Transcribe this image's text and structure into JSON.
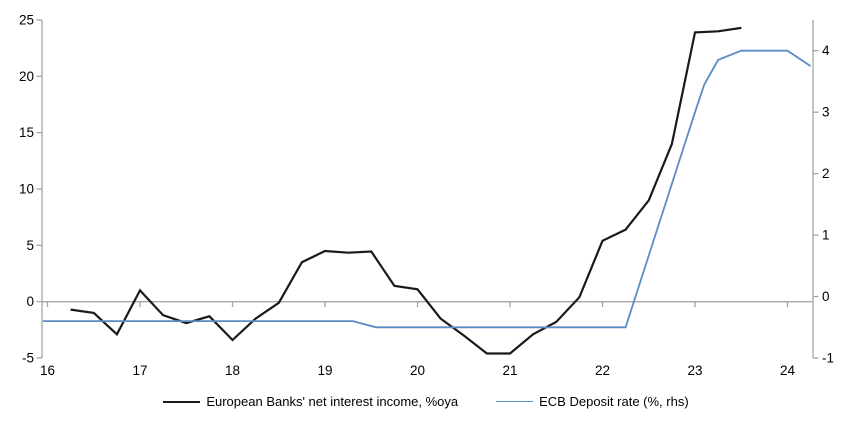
{
  "chart_data": {
    "type": "line",
    "title": "",
    "grid": "zero-line-only",
    "legend_position": "bottom-center",
    "x_axis": {
      "min": 16,
      "max": 24.3,
      "ticks": [
        16,
        17,
        18,
        19,
        20,
        21,
        22,
        23,
        24
      ],
      "tick_labels": [
        "16",
        "17",
        "18",
        "19",
        "20",
        "21",
        "22",
        "23",
        "24"
      ]
    },
    "left_axis": {
      "min": -5,
      "max": 25,
      "ticks": [
        25,
        20,
        15,
        10,
        5,
        0,
        -5
      ]
    },
    "right_axis": {
      "min": -1,
      "max": 4.5,
      "ticks": [
        4,
        3,
        2,
        1,
        0,
        -1
      ]
    },
    "colors": {
      "axis_gray": "#a6a6a6",
      "series_black": "#1a1a1a",
      "series_blue": "#5b8cc3"
    },
    "series": [
      {
        "name": "European Banks' net interest income, %oya",
        "axis": "left",
        "color": "#1a1a1a",
        "stroke_width": 2.2,
        "points": [
          [
            16.25,
            -0.7
          ],
          [
            16.5,
            -1.0
          ],
          [
            16.75,
            -2.9
          ],
          [
            17.0,
            1.0
          ],
          [
            17.25,
            -1.2
          ],
          [
            17.5,
            -1.9
          ],
          [
            17.75,
            -1.3
          ],
          [
            18.0,
            -3.4
          ],
          [
            18.25,
            -1.5
          ],
          [
            18.5,
            -0.1
          ],
          [
            18.75,
            3.5
          ],
          [
            19.0,
            4.5
          ],
          [
            19.25,
            4.35
          ],
          [
            19.5,
            4.45
          ],
          [
            19.75,
            1.4
          ],
          [
            20.0,
            1.1
          ],
          [
            20.25,
            -1.5
          ],
          [
            20.5,
            -3.0
          ],
          [
            20.75,
            -4.6
          ],
          [
            21.0,
            -4.6
          ],
          [
            21.25,
            -2.9
          ],
          [
            21.5,
            -1.8
          ],
          [
            21.75,
            0.4
          ],
          [
            22.0,
            5.4
          ],
          [
            22.25,
            6.4
          ],
          [
            22.5,
            9.0
          ],
          [
            22.75,
            14.0
          ],
          [
            23.0,
            23.9
          ],
          [
            23.25,
            24.0
          ],
          [
            23.5,
            24.3
          ]
        ]
      },
      {
        "name": "ECB Deposit rate (%, rhs)",
        "axis": "right",
        "color": "#5b8cc3",
        "stroke_width": 1.8,
        "points": [
          [
            15.95,
            -0.4
          ],
          [
            19.3,
            -0.4
          ],
          [
            19.55,
            -0.5
          ],
          [
            22.25,
            -0.5
          ],
          [
            23.0,
            3.0
          ],
          [
            23.1,
            3.45
          ],
          [
            23.25,
            3.85
          ],
          [
            23.5,
            4.0
          ],
          [
            24.0,
            4.0
          ],
          [
            24.25,
            3.75
          ]
        ]
      }
    ]
  }
}
